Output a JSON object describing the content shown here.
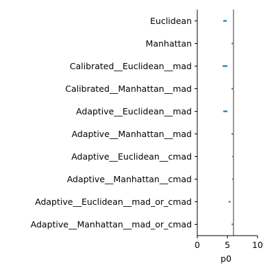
{
  "chart_data": {
    "type": "scatter",
    "xlabel": "p0",
    "xlim": [
      0,
      10
    ],
    "xticks": [
      0,
      5,
      10
    ],
    "categories": [
      "Euclidean",
      "Manhattan",
      "Calibrated__Euclidean__mad",
      "Calibrated__Manhattan__mad",
      "Adaptive__Euclidean__mad",
      "Adaptive__Manhattan__mad",
      "Adaptive__Euclidean__cmad",
      "Adaptive__Manhattan__cmad",
      "Adaptive__Euclidean__mad_or_cmad",
      "Adaptive__Manhattan__mad_or_cmad"
    ],
    "intervals": [
      [
        4.3,
        4.9
      ],
      [
        5.7,
        6.0
      ],
      [
        4.2,
        5.0
      ],
      [
        5.7,
        6.0
      ],
      [
        4.3,
        5.0
      ],
      [
        5.7,
        6.0
      ],
      [
        5.8,
        6.0
      ],
      [
        5.8,
        6.0
      ],
      [
        5.2,
        5.5
      ],
      [
        5.7,
        6.0
      ]
    ],
    "reference_line": 6.0,
    "colors": {
      "interval": "#1f77b4",
      "reference": "#808080",
      "axis": "#000000"
    },
    "grid": false,
    "legend": "none"
  }
}
